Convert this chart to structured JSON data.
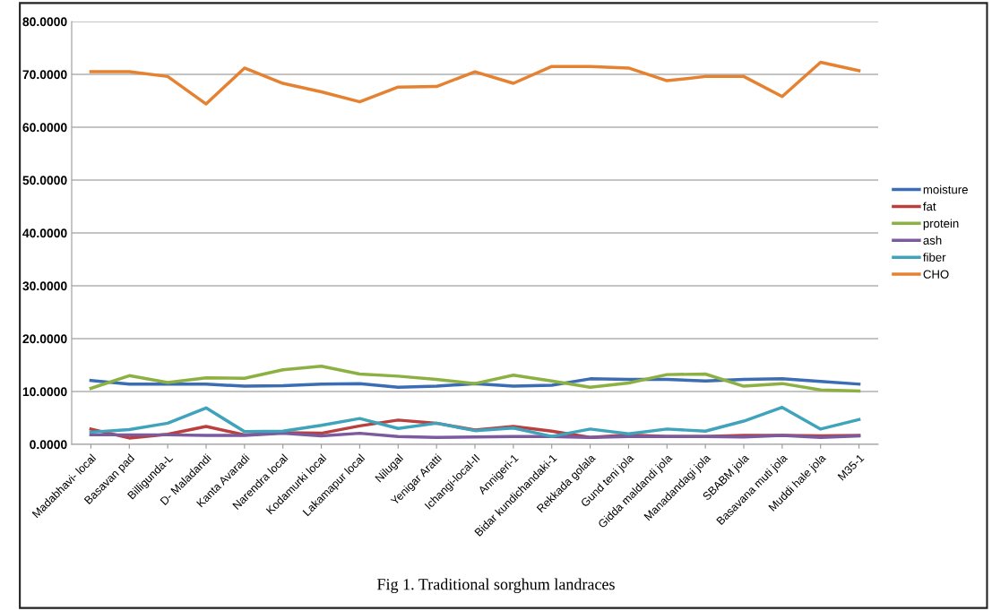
{
  "chart_data": {
    "type": "line",
    "categories": [
      "Madabhavi- local",
      "Basavan pad",
      "Billigunda-L",
      "D- Maladandi",
      "Kanta Avaradi",
      "Narendra local",
      "Kodamurki local",
      "Lakamapur local",
      "Nilugal",
      "Yenigar Aratti",
      "Ichangi-local-II",
      "Annigeri-1",
      "Bidar kundichandaki-1",
      "Rekkada golala",
      "Gund teni jola",
      "Gidda maldandi jola",
      "Manadandagi jola",
      "SBABM jola",
      "Basavana muti jola",
      "Muddi hale jola",
      "M35-1"
    ],
    "series": [
      {
        "name": "moisture",
        "color": "#3b6db4",
        "values": [
          12.1,
          11.4,
          11.4,
          11.4,
          11.0,
          11.1,
          11.4,
          11.5,
          10.8,
          11.0,
          11.5,
          11.0,
          11.2,
          12.4,
          12.3,
          12.3,
          12.0,
          12.3,
          12.4,
          11.9,
          11.4
        ]
      },
      {
        "name": "fat",
        "color": "#b9403e",
        "values": [
          2.9,
          1.2,
          1.9,
          3.4,
          1.8,
          2.2,
          2.1,
          3.5,
          4.6,
          4.0,
          2.7,
          3.4,
          2.5,
          1.3,
          1.8,
          1.5,
          1.5,
          1.7,
          1.7,
          1.6,
          1.7
        ]
      },
      {
        "name": "protein",
        "color": "#8cb142",
        "values": [
          10.6,
          13.0,
          11.7,
          12.6,
          12.5,
          14.1,
          14.8,
          13.3,
          12.9,
          12.3,
          11.5,
          13.1,
          12.0,
          10.8,
          11.6,
          13.2,
          13.3,
          11.0,
          11.5,
          10.3,
          10.1
        ]
      },
      {
        "name": "ash",
        "color": "#7b5a9e",
        "values": [
          1.8,
          1.8,
          1.8,
          1.7,
          1.7,
          2.1,
          1.6,
          2.1,
          1.5,
          1.3,
          1.4,
          1.5,
          1.5,
          1.3,
          1.5,
          1.5,
          1.5,
          1.4,
          1.7,
          1.3,
          1.6
        ]
      },
      {
        "name": "fiber",
        "color": "#3fa4bb",
        "values": [
          2.3,
          2.8,
          4.0,
          6.9,
          2.4,
          2.5,
          3.6,
          4.9,
          3.0,
          4.0,
          2.6,
          3.1,
          1.5,
          2.9,
          2.0,
          2.9,
          2.5,
          4.4,
          7.0,
          2.9,
          4.7
        ]
      },
      {
        "name": "CHO",
        "color": "#e58232",
        "values": [
          70.5,
          70.5,
          69.6,
          64.4,
          71.2,
          68.3,
          66.7,
          64.8,
          67.6,
          67.7,
          70.5,
          68.3,
          71.5,
          71.5,
          71.2,
          68.8,
          69.6,
          69.6,
          65.8,
          72.3,
          70.7
        ]
      }
    ],
    "ylim": [
      0,
      80
    ],
    "yticks": [
      {
        "value": 0,
        "label": "0.0000"
      },
      {
        "value": 10,
        "label": "10.0000"
      },
      {
        "value": 20,
        "label": "20.0000"
      },
      {
        "value": 30,
        "label": "30.0000"
      },
      {
        "value": 40,
        "label": "40.0000"
      },
      {
        "value": 50,
        "label": "50.0000"
      },
      {
        "value": 60,
        "label": "60.0000"
      },
      {
        "value": 70,
        "label": "70.0000"
      },
      {
        "value": 80,
        "label": "80.0000"
      }
    ],
    "grid": "y",
    "legend": "right",
    "marker": "none",
    "line_style": "solid",
    "annotations": [
      "Fig 1. Traditional sorghum landraces"
    ]
  }
}
